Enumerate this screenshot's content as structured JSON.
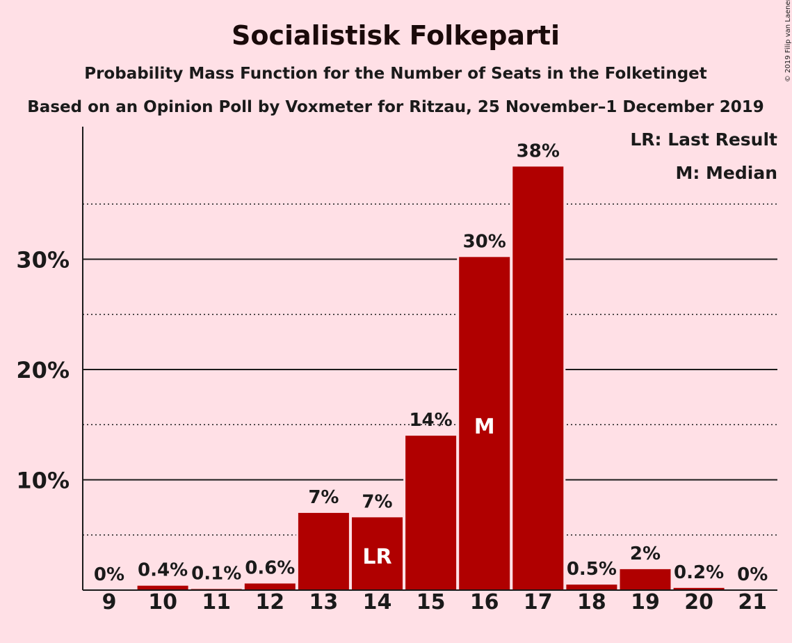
{
  "chart_data": {
    "type": "bar",
    "title": "Socialistisk Folkeparti",
    "subtitle": "Probability Mass Function for the Number of Seats in the Folketinget",
    "subtitle2": "Based on an Opinion Poll by Voxmeter for Ritzau, 25 November–1 December 2019",
    "categories": [
      "9",
      "10",
      "11",
      "12",
      "13",
      "14",
      "15",
      "16",
      "17",
      "18",
      "19",
      "20",
      "21"
    ],
    "values": [
      0,
      0.4,
      0.1,
      0.6,
      7,
      6.6,
      14,
      30.2,
      38.4,
      0.5,
      1.9,
      0.2,
      0
    ],
    "data_labels": [
      "0%",
      "0.4%",
      "0.1%",
      "0.6%",
      "7%",
      "7%",
      "14%",
      "30%",
      "38%",
      "0.5%",
      "2%",
      "0.2%",
      "0%"
    ],
    "inner_labels": {
      "14": "LR",
      "16": "M"
    },
    "ylim": [
      0,
      42
    ],
    "yticks": [
      10,
      20,
      30
    ],
    "ytick_labels": [
      "10%",
      "20%",
      "30%"
    ],
    "minor_gridlines": [
      5,
      15,
      25,
      35
    ],
    "legend": [
      "LR: Last Result",
      "M: Median"
    ],
    "legend_position": "top-right",
    "bar_color": "#b00000",
    "background_color": "#ffe0e6",
    "copyright": "© 2019 Filip van Laenen"
  }
}
